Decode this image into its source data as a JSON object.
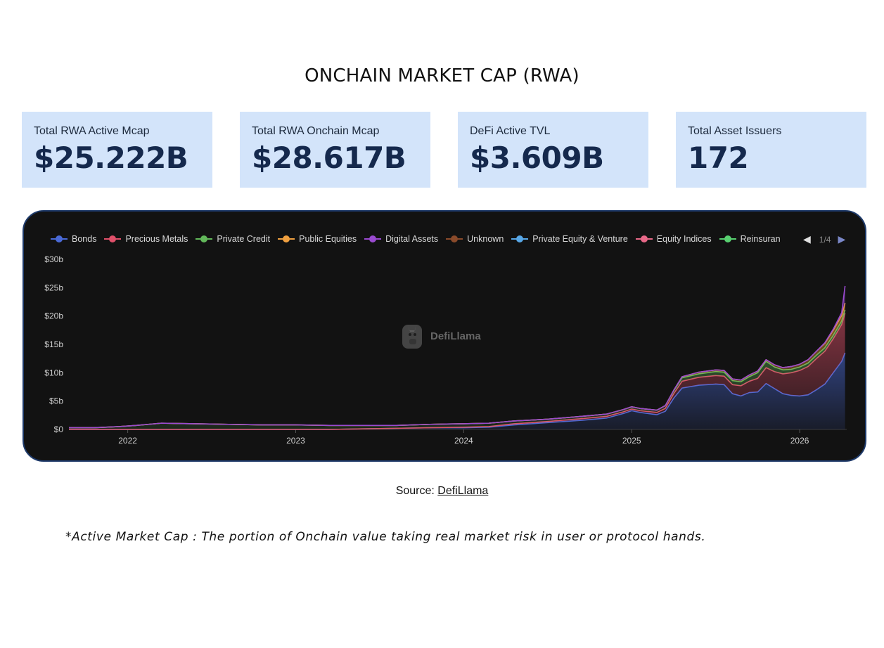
{
  "page": {
    "title": "ONCHAIN MARKET CAP (RWA)",
    "source_prefix": "Source: ",
    "source_link": "DefiLlama",
    "footnote": "*Active Market Cap : The portion of Onchain value taking real market risk in user or protocol hands."
  },
  "stats": [
    {
      "label": "Total RWA Active Mcap",
      "value": "$25.222B"
    },
    {
      "label": "Total RWA Onchain Mcap",
      "value": "$28.617B"
    },
    {
      "label": "DeFi Active TVL",
      "value": "$3.609B"
    },
    {
      "label": "Total Asset Issuers",
      "value": "172"
    }
  ],
  "legend": {
    "items": [
      {
        "label": "Bonds",
        "color": "#4a6ad8"
      },
      {
        "label": "Precious Metals",
        "color": "#e0506a"
      },
      {
        "label": "Private Credit",
        "color": "#62b85a"
      },
      {
        "label": "Public Equities",
        "color": "#f0a040"
      },
      {
        "label": "Digital Assets",
        "color": "#9a4ad0"
      },
      {
        "label": "Unknown",
        "color": "#8a4a2a"
      },
      {
        "label": "Private Equity & Venture",
        "color": "#58a8e8"
      },
      {
        "label": "Equity Indices",
        "color": "#e86888"
      },
      {
        "label": "Reinsuran",
        "color": "#58d070"
      }
    ],
    "page_indicator": "1/4",
    "prev_icon": "triangle-left-icon",
    "next_icon": "triangle-right-icon"
  },
  "watermark": {
    "text": "DefiLlama",
    "icon": "llama-logo-icon"
  },
  "chart_data": {
    "type": "area",
    "title": "",
    "xlabel": "",
    "ylabel": "",
    "ylim": [
      0,
      30
    ],
    "xlim": [
      2021.65,
      2026.28
    ],
    "y_ticks": [
      0,
      5,
      10,
      15,
      20,
      25,
      30
    ],
    "y_tick_labels": [
      "$0",
      "$5b",
      "$10b",
      "$15b",
      "$20b",
      "$25b",
      "$30b"
    ],
    "x_ticks": [
      2022,
      2023,
      2024,
      2025,
      2026
    ],
    "x_tick_labels": [
      "2022",
      "2023",
      "2024",
      "2025",
      "2026"
    ],
    "grid": false,
    "legend_position": "top",
    "stacked": true,
    "x": [
      2021.65,
      2021.8,
      2021.95,
      2022.05,
      2022.2,
      2022.4,
      2022.6,
      2022.8,
      2023.0,
      2023.2,
      2023.4,
      2023.6,
      2023.8,
      2024.0,
      2024.15,
      2024.3,
      2024.5,
      2024.7,
      2024.85,
      2024.95,
      2025.0,
      2025.05,
      2025.15,
      2025.2,
      2025.25,
      2025.3,
      2025.4,
      2025.5,
      2025.55,
      2025.6,
      2025.65,
      2025.7,
      2025.75,
      2025.8,
      2025.85,
      2025.9,
      2025.95,
      2026.0,
      2026.05,
      2026.1,
      2026.15,
      2026.2,
      2026.25,
      2026.27
    ],
    "series": [
      {
        "name": "Bonds",
        "values": [
          0,
          0,
          0,
          0,
          0,
          0,
          0,
          0,
          0,
          0,
          0.1,
          0.2,
          0.3,
          0.3,
          0.4,
          0.8,
          1.2,
          1.6,
          2.0,
          2.8,
          3.3,
          3.0,
          2.6,
          3.2,
          5.5,
          7.3,
          7.8,
          8.0,
          7.9,
          6.3,
          5.9,
          6.5,
          6.6,
          8.1,
          7.2,
          6.3,
          6.0,
          5.9,
          6.1,
          7.0,
          8.0,
          10.0,
          12.0,
          13.5
        ]
      },
      {
        "name": "Precious Metals",
        "values": [
          0,
          0,
          0,
          0,
          0,
          0,
          0,
          0,
          0,
          0,
          0,
          0,
          0,
          0.1,
          0.1,
          0.2,
          0.2,
          0.3,
          0.3,
          0.3,
          0.3,
          0.3,
          0.4,
          0.5,
          0.8,
          1.2,
          1.4,
          1.5,
          1.5,
          1.6,
          1.8,
          2.0,
          2.4,
          2.8,
          3.0,
          3.5,
          4.0,
          4.5,
          5.0,
          5.5,
          5.8,
          6.0,
          6.5,
          7.0
        ]
      },
      {
        "name": "Private Credit",
        "values": [
          0.3,
          0.3,
          0.5,
          0.7,
          1.1,
          1.0,
          0.9,
          0.8,
          0.8,
          0.7,
          0.6,
          0.5,
          0.6,
          0.6,
          0.6,
          0.5,
          0.4,
          0.4,
          0.4,
          0.4,
          0.4,
          0.4,
          0.4,
          0.5,
          0.5,
          0.6,
          0.6,
          0.7,
          0.7,
          0.7,
          0.7,
          0.8,
          1.0,
          1.1,
          0.8,
          0.7,
          0.6,
          0.6,
          0.6,
          0.6,
          0.6,
          0.6,
          0.6,
          0.6
        ]
      },
      {
        "name": "Public Equities",
        "values": [
          0,
          0,
          0,
          0,
          0,
          0,
          0,
          0,
          0,
          0,
          0,
          0,
          0,
          0,
          0,
          0,
          0,
          0,
          0,
          0,
          0,
          0,
          0,
          0,
          0.1,
          0.2,
          0.3,
          0.3,
          0.3,
          0.3,
          0.3,
          0.3,
          0.3,
          0.3,
          0.4,
          0.4,
          0.5,
          0.5,
          0.6,
          0.7,
          0.8,
          0.9,
          1.0,
          1.2
        ]
      },
      {
        "name": "Digital Assets",
        "values": [
          0,
          0,
          0,
          0,
          0,
          0,
          0,
          0,
          0,
          0,
          0,
          0,
          0,
          0,
          0,
          0,
          0,
          0,
          0,
          0,
          0,
          0,
          0,
          0,
          0,
          0,
          0,
          0,
          0,
          0,
          0,
          0,
          0,
          0,
          0,
          0,
          0,
          0,
          0,
          0,
          0.1,
          0.2,
          0.5,
          3.0
        ]
      }
    ]
  }
}
